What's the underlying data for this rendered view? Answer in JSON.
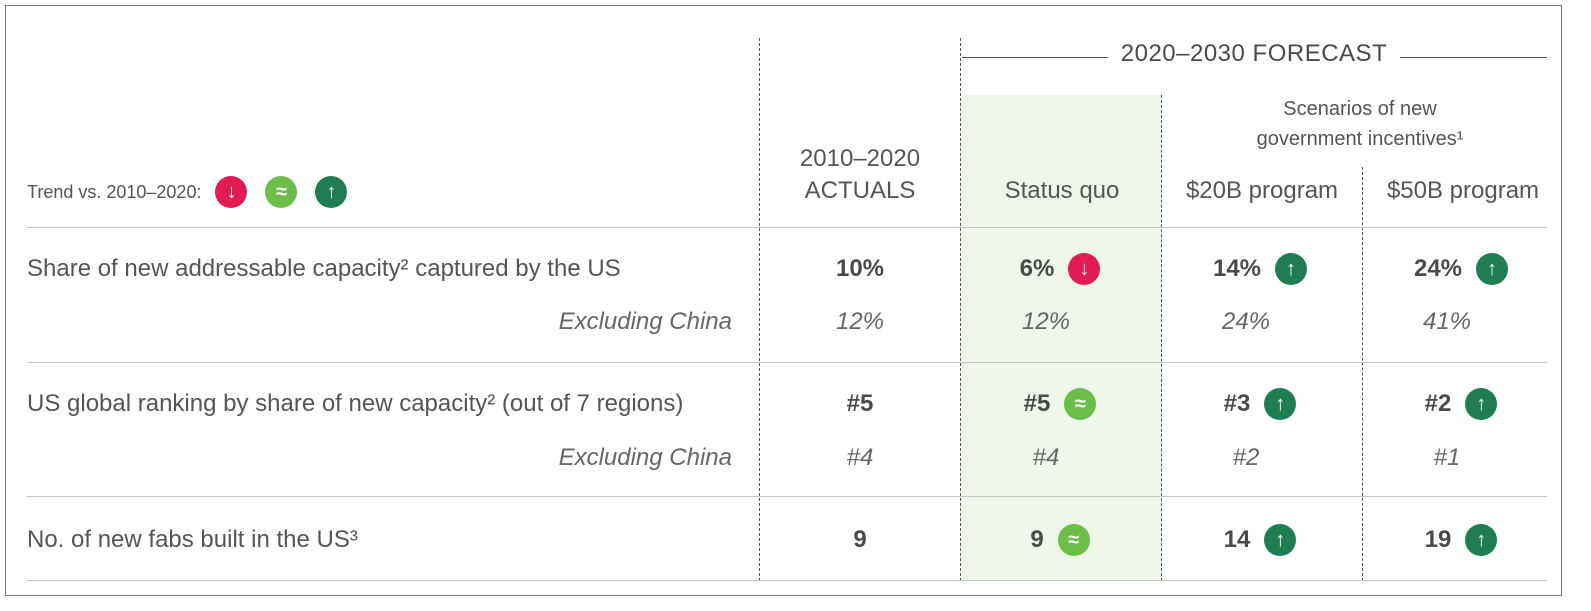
{
  "colors": {
    "down": "#e31b54",
    "flat": "#6cc04a",
    "up": "#1e7d52",
    "status_quo_bg": "#eef6ea"
  },
  "legend": {
    "label": "Trend vs. 2010–2020:",
    "items": [
      {
        "icon": "down-arrow-icon",
        "glyph": "↓",
        "trend": "down"
      },
      {
        "icon": "approx-equal-icon",
        "glyph": "≈",
        "trend": "flat"
      },
      {
        "icon": "up-arrow-icon",
        "glyph": "↑",
        "trend": "up"
      }
    ]
  },
  "header": {
    "forecast": "2020–2030 FORECAST",
    "actuals_line1": "2010–2020",
    "actuals_line2": "ACTUALS",
    "status_quo": "Status quo",
    "scenarios_line1": "Scenarios of new",
    "scenarios_line2": "government incentives¹",
    "program_20": "$20B program",
    "program_50": "$50B program"
  },
  "chart_data": {
    "type": "table",
    "columns": [
      "2010–2020 ACTUALS",
      "Status quo",
      "$20B program",
      "$50B program"
    ],
    "rows": [
      {
        "metric": "Share of new addressable capacity² captured by the US",
        "values": [
          "10%",
          "6%",
          "14%",
          "24%"
        ],
        "trends": [
          null,
          "down",
          "up",
          "up"
        ],
        "sub_label": "Excluding China",
        "sub_values": [
          "12%",
          "12%",
          "24%",
          "41%"
        ]
      },
      {
        "metric": "US global ranking by share of new capacity² (out of 7 regions)",
        "values": [
          "#5",
          "#5",
          "#3",
          "#2"
        ],
        "trends": [
          null,
          "flat",
          "up",
          "up"
        ],
        "sub_label": "Excluding China",
        "sub_values": [
          "#4",
          "#4",
          "#2",
          "#1"
        ]
      },
      {
        "metric": "No. of new fabs built in the US³",
        "values": [
          "9",
          "9",
          "14",
          "19"
        ],
        "trends": [
          null,
          "flat",
          "up",
          "up"
        ],
        "sub_label": null,
        "sub_values": []
      }
    ]
  }
}
